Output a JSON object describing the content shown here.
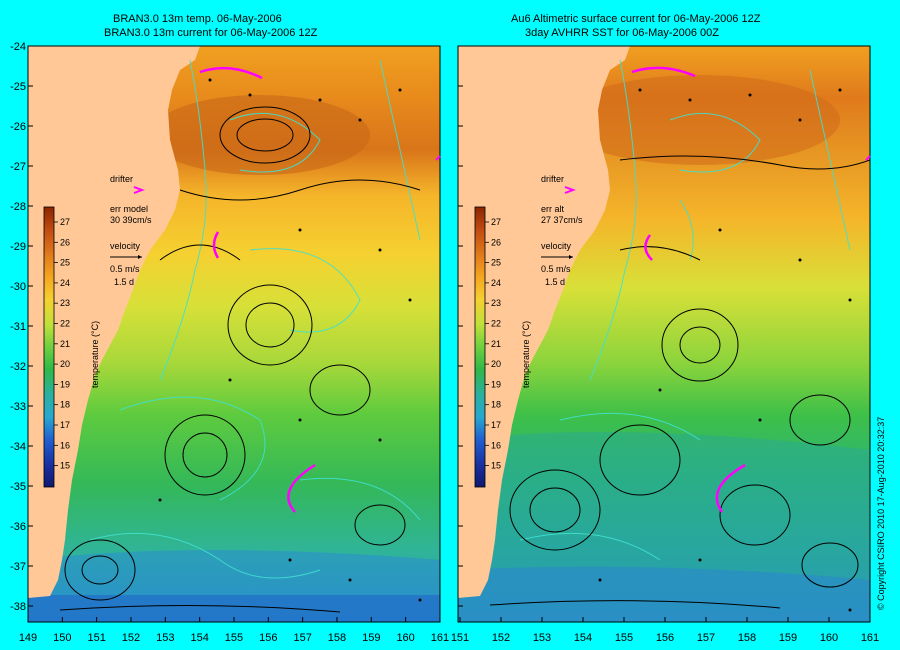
{
  "left_panel": {
    "title_line1": "BRAN3.0 13m temp. 06-May-2006",
    "title_line2": "BRAN3.0 13m current for 06-May-2006 12Z",
    "drifter_label": "drifter",
    "err_line1": "err model",
    "err_line2": "30 39cm/s",
    "velocity_label": "velocity",
    "velocity_scale": "0.5 m/s",
    "velocity_days": "1.5 d"
  },
  "right_panel": {
    "title_line1": "Au6 Altimetric surface current for 06-May-2006 12Z",
    "title_line2": "3day AVHRR SST for 06-May-2006 00Z",
    "drifter_label": "drifter",
    "err_line1": "err alt",
    "err_line2": "27 37cm/s",
    "velocity_label": "velocity",
    "velocity_scale": "0.5 m/s",
    "velocity_days": "1.5 d"
  },
  "colorbar": {
    "label": "temperature (°C)",
    "ticks": [
      "27",
      "26",
      "25",
      "24",
      "23",
      "22",
      "21",
      "20",
      "19",
      "18",
      "17",
      "16",
      "15"
    ]
  },
  "y_axis": {
    "ticks": [
      "-24",
      "-25",
      "-26",
      "-27",
      "-28",
      "-29",
      "-30",
      "-31",
      "-32",
      "-33",
      "-34",
      "-35",
      "-36",
      "-37",
      "-38"
    ]
  },
  "x_axis_left": {
    "ticks": [
      "149",
      "150",
      "151",
      "152",
      "153",
      "154",
      "155",
      "156",
      "157",
      "158",
      "159",
      "160",
      "161"
    ]
  },
  "x_axis_right": {
    "ticks": [
      "151",
      "152",
      "153",
      "154",
      "155",
      "156",
      "157",
      "158",
      "159",
      "160",
      "161"
    ]
  },
  "copyright": "© Copyright CSIRO 2010   17-Aug-2010 20:32:37",
  "colors": {
    "background": "#00ffff",
    "land": "#ffc896",
    "drifter": "#ff00ff",
    "contour": "#40e0d0"
  }
}
